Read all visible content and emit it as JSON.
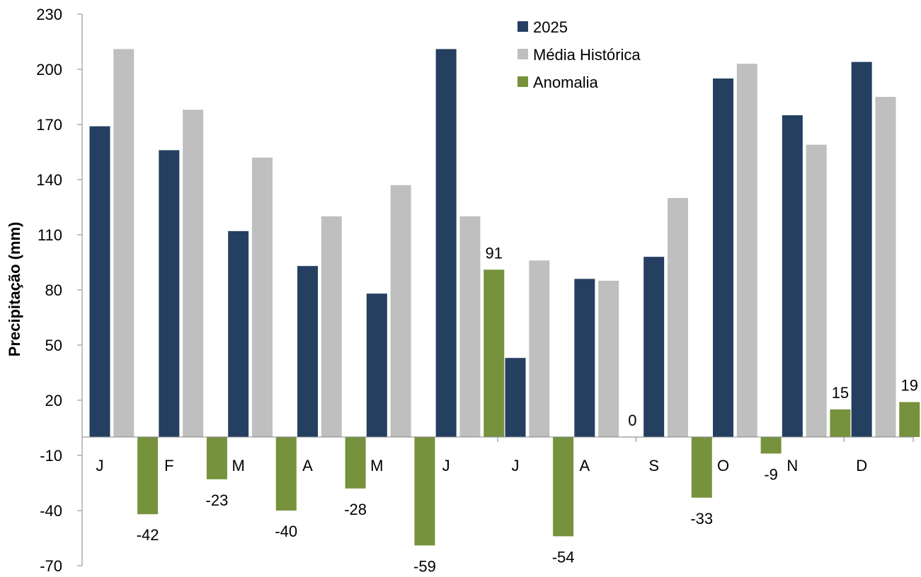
{
  "chart_data": {
    "type": "bar",
    "title": "",
    "xlabel": "",
    "ylabel": "Precipitação (mm)",
    "ylim": [
      -70,
      230
    ],
    "yticks": [
      230,
      200,
      170,
      140,
      110,
      80,
      50,
      20,
      -10,
      -40,
      -70
    ],
    "categories": [
      "J",
      "F",
      "M",
      "A",
      "M",
      "J",
      "J",
      "A",
      "S",
      "O",
      "N",
      "D"
    ],
    "series": [
      {
        "name": "2025",
        "color": "#243F60",
        "values": [
          169,
          156,
          112,
          93,
          78,
          211,
          43,
          86,
          98,
          195,
          175,
          204
        ]
      },
      {
        "name": "Média Histórica",
        "color": "#BFBFBF",
        "values": [
          211,
          178,
          152,
          120,
          137,
          120,
          96,
          85,
          130,
          203,
          159,
          185
        ]
      },
      {
        "name": "Anomalia",
        "color": "#76923C",
        "values": [
          -42,
          -23,
          -40,
          -28,
          -59,
          91,
          -54,
          0,
          -33,
          -9,
          15,
          19
        ]
      }
    ],
    "data_labels_series": "Anomalia",
    "legend_position": "top-center",
    "grid": false
  }
}
